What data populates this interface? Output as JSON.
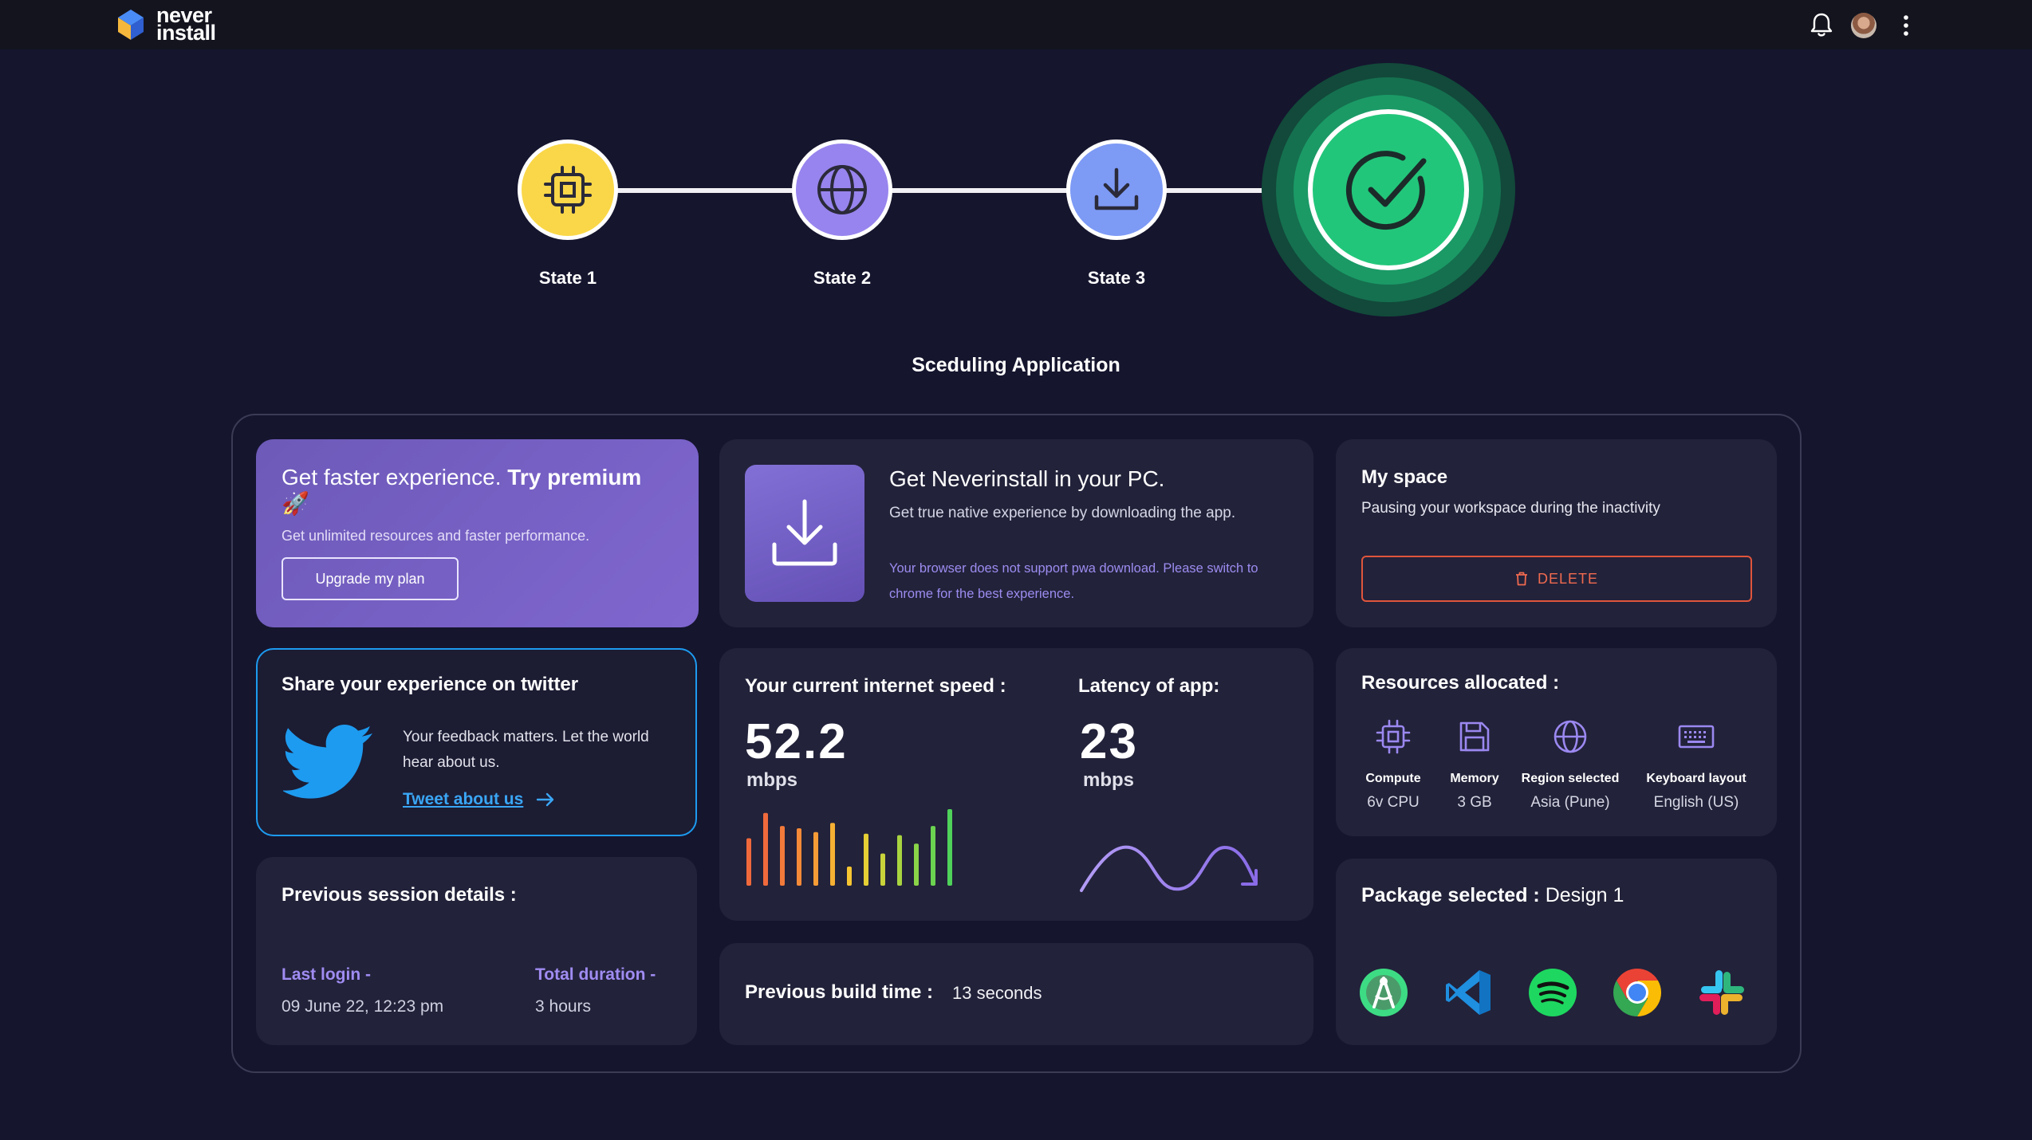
{
  "brand": {
    "line1": "never",
    "line2": "install"
  },
  "stepper": {
    "steps": [
      {
        "label": "State 1",
        "color": "#fad748",
        "icon": "chip-icon"
      },
      {
        "label": "State 2",
        "color": "#9884ee",
        "icon": "globe-icon"
      },
      {
        "label": "State 3",
        "color": "#7d9af5",
        "icon": "download-icon"
      }
    ],
    "done": {
      "color": "#22c67a",
      "icon": "check-icon"
    }
  },
  "heading": "Sceduling Application",
  "premium": {
    "title_light": "Get faster experience. ",
    "title_bold": "Try premium",
    "emoji": "🚀",
    "subtitle": "Get unlimited resources and faster performance.",
    "button": "Upgrade my plan"
  },
  "download": {
    "title": "Get Neverinstall in your PC.",
    "subtitle": "Get true native experience by downloading the app.",
    "note": "Your browser does not support pwa download. Please switch to chrome for the best experience."
  },
  "myspace": {
    "title": "My space",
    "subtitle": "Pausing your workspace during the inactivity",
    "delete_label": "DELETE"
  },
  "twitter": {
    "title": "Share your experience on twitter",
    "text": "Your feedback matters. Let the world hear about us.",
    "link": "Tweet about us"
  },
  "speed": {
    "internet_label": "Your current internet speed :",
    "internet_value": "52.2",
    "internet_unit": "mbps",
    "latency_label": "Latency of app:",
    "latency_value": "23",
    "latency_unit": "mbps",
    "bars": [
      0.62,
      0.95,
      0.78,
      0.75,
      0.7,
      0.82,
      0.25,
      0.68,
      0.42,
      0.66,
      0.55,
      0.78,
      1.0
    ]
  },
  "session": {
    "title": "Previous session details :",
    "last_login_label": "Last login -",
    "last_login_value": "09 June 22, 12:23 pm",
    "duration_label": "Total duration -",
    "duration_value": "3 hours"
  },
  "build": {
    "label": "Previous build time :",
    "value": "13 seconds"
  },
  "resources": {
    "title": "Resources allocated :",
    "items": [
      {
        "name": "Compute",
        "value": "6v CPU",
        "icon": "chip-icon"
      },
      {
        "name": "Memory",
        "value": "3 GB",
        "icon": "floppy-icon"
      },
      {
        "name": "Region selected",
        "value": "Asia (Pune)",
        "icon": "globe-icon"
      },
      {
        "name": "Keyboard layout",
        "value": "English (US)",
        "icon": "keyboard-icon"
      }
    ]
  },
  "package": {
    "label": "Package selected : ",
    "value": "Design 1",
    "apps": [
      "android-studio-icon",
      "vscode-icon",
      "spotify-icon",
      "chrome-icon",
      "slack-icon"
    ]
  }
}
